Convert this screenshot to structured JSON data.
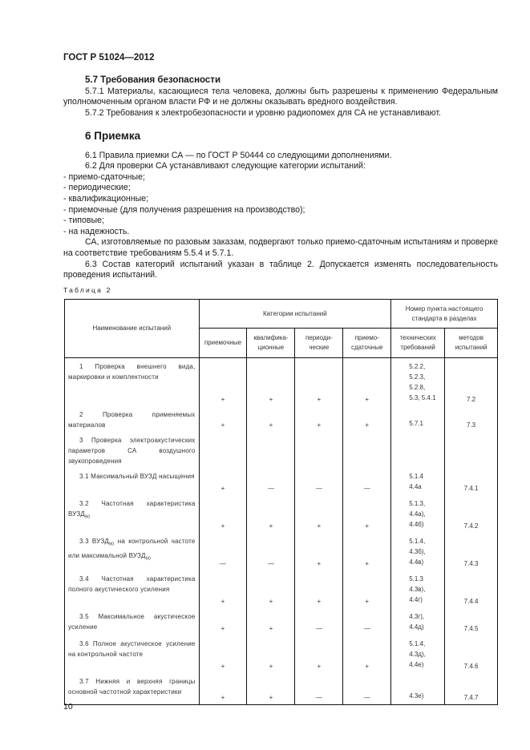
{
  "header": {
    "doc_id": "ГОСТ Р 51024—2012"
  },
  "section_5_7": {
    "title": "5.7 Требования безопасности",
    "p1": "5.7.1 Материалы, касающиеся тела человека, должны быть разрешены к применению Федеральным уполномоченным органом власти РФ и не должны оказывать вредного воздействия.",
    "p2": "5.7.2 Требования к электробезопасности и уровню радиопомех для СА не устанавливают."
  },
  "section_6": {
    "title": "6 Приемка",
    "p1": "6.1 Правила приемки СА — по ГОСТ Р 50444 со следующими дополнениями.",
    "p2": "6.2 Для проверки СА устанавливают следующие категории испытаний:",
    "list": [
      "- приемо-сдаточные;",
      "- периодические;",
      "- квалификационные;",
      "- приемочные (для получения разрешения на производство);",
      "- типовые;",
      "- на надежность."
    ],
    "p3": "СА, изготовляемые по разовым заказам, подвергают только приемо-сдаточным испытаниям и проверке на соответствие требованиям 5.5.4 и 5.7.1.",
    "p4": "6.3 Состав категорий испытаний указан в таблице 2. Допускается изменять последовательность проведения испытаний."
  },
  "table": {
    "caption": "Таблица 2",
    "col_name": "Наименование испытаний",
    "col_categories": "Категории испытаний",
    "col_clause": "Номер пункта настоящего стандарта в разделах",
    "sub_headers": [
      "приемочные",
      "квалифика-ционные",
      "периоди-ческие",
      "приемо-сдаточные",
      "технических требований",
      "методов испытаний"
    ],
    "rows": [
      {
        "name": [
          {
            "t": "1 Проверка внешнего вида, маркировки и комплектности"
          }
        ],
        "vals": [
          "+",
          "+",
          "+",
          "+"
        ],
        "tech": "5.2.2,\n5.2.3, 5.2.8,\n5.3, 5.4.1",
        "method": "7.2"
      },
      {
        "name": [
          {
            "t": "2 Проверка применяемых материалов"
          }
        ],
        "vals": [
          "+",
          "+",
          "+",
          "+"
        ],
        "tech": "5.7.1",
        "method": "7.3"
      },
      {
        "name": [
          {
            "t": "3 Проверка электроакустических параметров СА воздушного звукопроведения"
          }
        ],
        "vals": [
          "",
          "",
          "",
          ""
        ],
        "tech": "",
        "method": ""
      },
      {
        "name": [
          {
            "t": "3.1 Максимальный ВУЗД насыщения"
          }
        ],
        "vals": [
          "+",
          "—",
          "—",
          "—"
        ],
        "tech": "5.1.4\n4.4а",
        "method": "7.4.1"
      },
      {
        "name": [
          {
            "t": "3.2 Частотная характеристика ВУЗД"
          },
          {
            "sub": "90"
          }
        ],
        "vals": [
          "+",
          "+",
          "+",
          "+"
        ],
        "tech": "5.1.3,\n4.4а),\n4.4б)",
        "method": "7.4.2"
      },
      {
        "name": [
          {
            "t": "3.3 ВУЗД"
          },
          {
            "sub": "90"
          },
          {
            "t": " на контрольной частоте или максимальной ВУЗД"
          },
          {
            "sub": "90"
          }
        ],
        "vals": [
          "—",
          "—",
          "+",
          "+"
        ],
        "tech": "5.1.4,\n4.3б),\n4.4в)",
        "method": "7.4.3"
      },
      {
        "name": [
          {
            "t": "3.4 Частотная характеристика полного акустического усиления"
          }
        ],
        "vals": [
          "+",
          "+",
          "+",
          "+"
        ],
        "tech": "5.1.3\n4.3в),\n4.4г)",
        "method": "7.4.4"
      },
      {
        "name": [
          {
            "t": "3.5 Максимальное акустическое усиление"
          }
        ],
        "vals": [
          "+",
          "+",
          "—",
          "—"
        ],
        "tech": "4.3г),\n4.4д)",
        "method": "7.4.5"
      },
      {
        "name": [
          {
            "t": "3.6 Полное акустическое усиление на контрольной частоте"
          }
        ],
        "vals": [
          "+",
          "+",
          "+",
          "+"
        ],
        "tech": "5.1.4,\n4.3д),\n4.4е)",
        "method": "7.4.6"
      },
      {
        "name": [
          {
            "t": "3.7 Нижняя и верхняя границы основной частотной характеристики"
          }
        ],
        "vals": [
          "+",
          "+",
          "—",
          "—"
        ],
        "tech": "4.3е)",
        "method": "7.4.7"
      }
    ]
  },
  "footer": {
    "page_number": "10"
  }
}
